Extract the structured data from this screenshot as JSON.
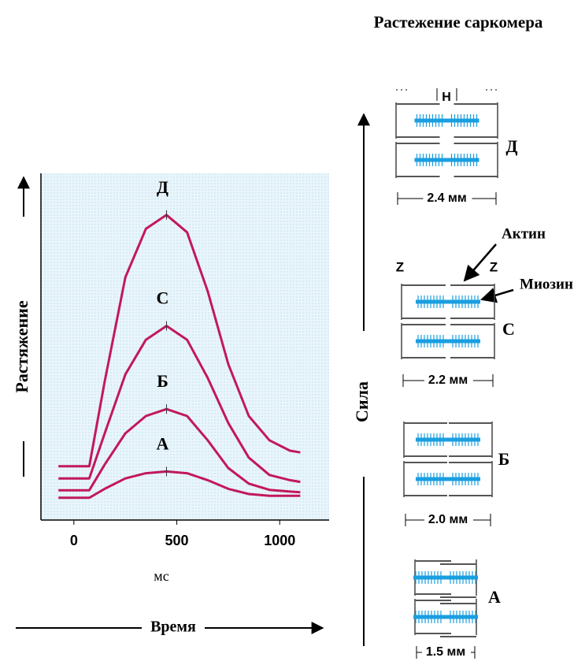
{
  "chart_data": {
    "type": "line",
    "y_label": "Растяжение",
    "x_unit": "мс",
    "x_label": "Время",
    "x": [
      -75,
      75,
      150,
      250,
      350,
      450,
      550,
      650,
      750,
      850,
      950,
      1050,
      1100
    ],
    "xlim": [
      -160,
      1240
    ],
    "xticks": [
      0,
      500,
      1000
    ],
    "ylim": [
      0,
      100
    ],
    "series": [
      {
        "name": "А",
        "color": "#c2185b",
        "values": [
          6.4,
          6.4,
          9,
          12,
          13.5,
          14,
          13.5,
          11.5,
          9,
          7.5,
          7,
          7,
          7
        ]
      },
      {
        "name": "Б",
        "color": "#c2185b",
        "values": [
          8.6,
          8.6,
          16,
          25,
          30,
          32,
          30,
          23,
          15,
          10.5,
          8.7,
          8.2,
          8
        ]
      },
      {
        "name": "С",
        "color": "#c2185b",
        "values": [
          12,
          12,
          25,
          42,
          52,
          56,
          52,
          41,
          28,
          18,
          13,
          11.5,
          11
        ]
      },
      {
        "name": "Д",
        "color": "#c2185b",
        "values": [
          15.5,
          15.5,
          40,
          70,
          84,
          88,
          83,
          66,
          45,
          30,
          23,
          20,
          19.5
        ]
      }
    ]
  },
  "diagram": {
    "title": "Растежение саркомера",
    "force_label": "Сила",
    "actin": "Актин",
    "myosin": "Миозин",
    "z_labels": [
      "Z",
      "Z"
    ],
    "h_label": "H",
    "sarcomeres": [
      {
        "label": "Д",
        "length": "2.4 мм"
      },
      {
        "label": "С",
        "length": "2.2 мм"
      },
      {
        "label": "Б",
        "length": "2.0 мм"
      },
      {
        "label": "А",
        "length": "1.5 мм"
      }
    ]
  }
}
